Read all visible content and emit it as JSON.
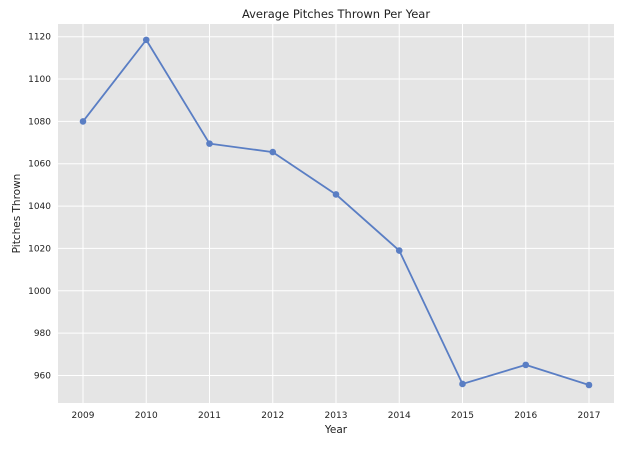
{
  "chart_data": {
    "type": "line",
    "title": "Average Pitches Thrown Per Year",
    "xlabel": "Year",
    "ylabel": "Pitches Thrown",
    "x": [
      "2009",
      "2010",
      "2011",
      "2012",
      "2013",
      "2014",
      "2015",
      "2016",
      "2017"
    ],
    "series": [
      {
        "values": [
          1080,
          1118.5,
          1069.5,
          1065.5,
          1045.5,
          1019,
          956,
          965,
          955.5
        ]
      }
    ],
    "yticks": [
      960,
      980,
      1000,
      1020,
      1040,
      1060,
      1080,
      1100,
      1120
    ],
    "ylim": [
      947,
      1126
    ],
    "grid": true,
    "colors": {
      "background": "#e5e5e5",
      "grid": "#ffffff",
      "line": "#5a7ec4"
    }
  }
}
